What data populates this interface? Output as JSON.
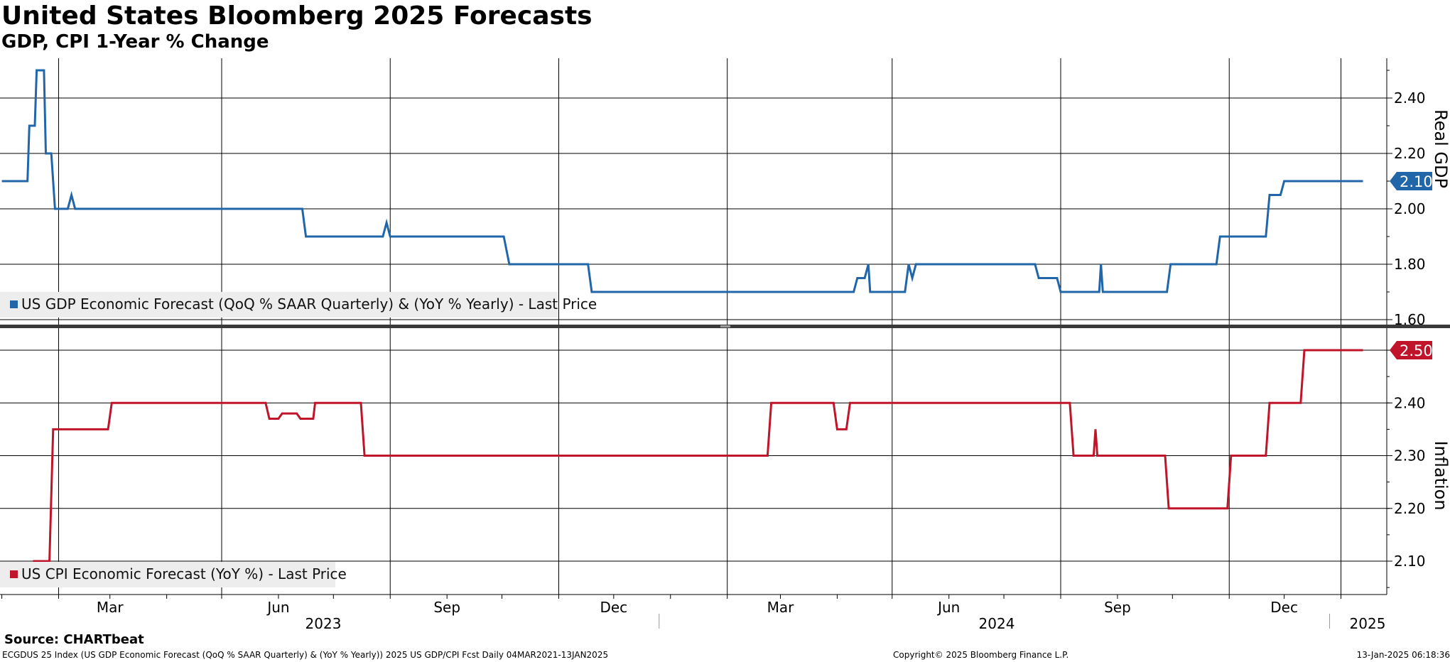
{
  "header": {
    "title": "United States Bloomberg 2025 Forecasts",
    "subtitle": "GDP, CPI 1-Year % Change"
  },
  "footer": {
    "source": "Source: CHARTbeat",
    "description": "ECGDUS 25 Index (US GDP Economic Forecast (QoQ % SAAR Quarterly) & (YoY % Yearly)) 2025 US GDP/CPI Fcst  Daily 04MAR2021-13JAN2025",
    "copyright": "Copyright© 2025 Bloomberg Finance L.P.",
    "timestamp": "13-Jan-2025 06:18:36"
  },
  "colors": {
    "gdp": "#2166a8",
    "cpi": "#c0142b"
  },
  "chart_data": [
    {
      "type": "line",
      "series": [
        {
          "name": "US GDP Economic Forecast (QoQ % SAAR Quarterly) & (YoY % Yearly) - Last Price",
          "points": [
            [
              "2023-01-01",
              2.1
            ],
            [
              "2023-01-15",
              2.1
            ],
            [
              "2023-01-16",
              2.3
            ],
            [
              "2023-01-19",
              2.3
            ],
            [
              "2023-01-20",
              2.5
            ],
            [
              "2023-01-24",
              2.5
            ],
            [
              "2023-01-25",
              2.2
            ],
            [
              "2023-01-28",
              2.2
            ],
            [
              "2023-01-30",
              2.0
            ],
            [
              "2023-02-06",
              2.0
            ],
            [
              "2023-02-08",
              2.05
            ],
            [
              "2023-02-10",
              2.0
            ],
            [
              "2023-06-14",
              2.0
            ],
            [
              "2023-06-16",
              1.9
            ],
            [
              "2023-07-28",
              1.9
            ],
            [
              "2023-07-30",
              1.95
            ],
            [
              "2023-08-01",
              1.9
            ],
            [
              "2023-10-02",
              1.9
            ],
            [
              "2023-10-05",
              1.8
            ],
            [
              "2023-11-17",
              1.8
            ],
            [
              "2023-11-19",
              1.7
            ],
            [
              "2024-04-10",
              1.7
            ],
            [
              "2024-04-12",
              1.75
            ],
            [
              "2024-04-16",
              1.75
            ],
            [
              "2024-04-18",
              1.8
            ],
            [
              "2024-04-19",
              1.7
            ],
            [
              "2024-05-08",
              1.7
            ],
            [
              "2024-05-10",
              1.8
            ],
            [
              "2024-05-12",
              1.75
            ],
            [
              "2024-05-14",
              1.8
            ],
            [
              "2024-07-18",
              1.8
            ],
            [
              "2024-07-20",
              1.75
            ],
            [
              "2024-07-30",
              1.75
            ],
            [
              "2024-08-01",
              1.7
            ],
            [
              "2024-08-22",
              1.7
            ],
            [
              "2024-08-23",
              1.8
            ],
            [
              "2024-08-24",
              1.7
            ],
            [
              "2024-09-28",
              1.7
            ],
            [
              "2024-09-30",
              1.8
            ],
            [
              "2024-10-25",
              1.8
            ],
            [
              "2024-10-27",
              1.9
            ],
            [
              "2024-11-21",
              1.9
            ],
            [
              "2024-11-23",
              2.05
            ],
            [
              "2024-11-29",
              2.05
            ],
            [
              "2024-12-01",
              2.1
            ],
            [
              "2025-01-13",
              2.1
            ]
          ]
        }
      ],
      "y_ticks": [
        "2.40",
        "2.20",
        "2.00",
        "1.80",
        "1.60"
      ],
      "ylim": [
        1.56,
        2.58
      ],
      "axis_label": "Real GDP",
      "last_value": "2.10",
      "legend_placement": "bottom-left",
      "grid": true
    },
    {
      "type": "line",
      "series": [
        {
          "name": "US CPI Economic Forecast (YoY %) - Last Price",
          "points": [
            [
              "2023-01-18",
              2.1
            ],
            [
              "2023-01-27",
              2.1
            ],
            [
              "2023-01-29",
              2.35
            ],
            [
              "2023-02-28",
              2.35
            ],
            [
              "2023-03-02",
              2.4
            ],
            [
              "2023-05-25",
              2.4
            ],
            [
              "2023-05-27",
              2.37
            ],
            [
              "2023-06-01",
              2.37
            ],
            [
              "2023-06-03",
              2.38
            ],
            [
              "2023-06-11",
              2.38
            ],
            [
              "2023-06-13",
              2.37
            ],
            [
              "2023-06-20",
              2.37
            ],
            [
              "2023-06-21",
              2.4
            ],
            [
              "2023-07-16",
              2.4
            ],
            [
              "2023-07-18",
              2.3
            ],
            [
              "2024-02-23",
              2.3
            ],
            [
              "2024-02-25",
              2.4
            ],
            [
              "2024-03-30",
              2.4
            ],
            [
              "2024-04-01",
              2.35
            ],
            [
              "2024-04-06",
              2.35
            ],
            [
              "2024-04-08",
              2.4
            ],
            [
              "2024-08-06",
              2.4
            ],
            [
              "2024-08-08",
              2.3
            ],
            [
              "2024-08-19",
              2.3
            ],
            [
              "2024-08-20",
              2.35
            ],
            [
              "2024-08-21",
              2.3
            ],
            [
              "2024-09-27",
              2.3
            ],
            [
              "2024-09-29",
              2.2
            ],
            [
              "2024-10-31",
              2.2
            ],
            [
              "2024-11-02",
              2.3
            ],
            [
              "2024-11-21",
              2.3
            ],
            [
              "2024-11-23",
              2.4
            ],
            [
              "2024-12-10",
              2.4
            ],
            [
              "2024-12-12",
              2.5
            ],
            [
              "2025-01-13",
              2.5
            ]
          ]
        }
      ],
      "y_ticks": [
        "2.50",
        "2.40",
        "2.30",
        "2.20",
        "2.10"
      ],
      "ylim": [
        2.04,
        2.54
      ],
      "axis_label": "Inflation",
      "last_value": "2.50",
      "legend_placement": "bottom-left",
      "grid": true
    }
  ],
  "x_axis": {
    "range": [
      "2022-12-31",
      "2025-01-26"
    ],
    "month_labels": [
      {
        "label": "Mar",
        "date": "2023-03-01"
      },
      {
        "label": "Jun",
        "date": "2023-06-01"
      },
      {
        "label": "Sep",
        "date": "2023-09-01"
      },
      {
        "label": "Dec",
        "date": "2023-12-01"
      },
      {
        "label": "Mar",
        "date": "2024-03-01"
      },
      {
        "label": "Jun",
        "date": "2024-06-01"
      },
      {
        "label": "Sep",
        "date": "2024-09-01"
      },
      {
        "label": "Dec",
        "date": "2024-12-01"
      }
    ],
    "year_labels": [
      {
        "label": "2023",
        "date": "2023-01-01"
      },
      {
        "label": "2024",
        "date": "2024-01-01"
      },
      {
        "label": "2025",
        "date": "2025-01-01"
      }
    ],
    "gridlines": [
      "2023-02-01",
      "2023-05-01",
      "2023-08-01",
      "2023-11-01",
      "2024-02-01",
      "2024-05-01",
      "2024-08-01",
      "2024-11-01",
      "2025-01-01"
    ]
  }
}
